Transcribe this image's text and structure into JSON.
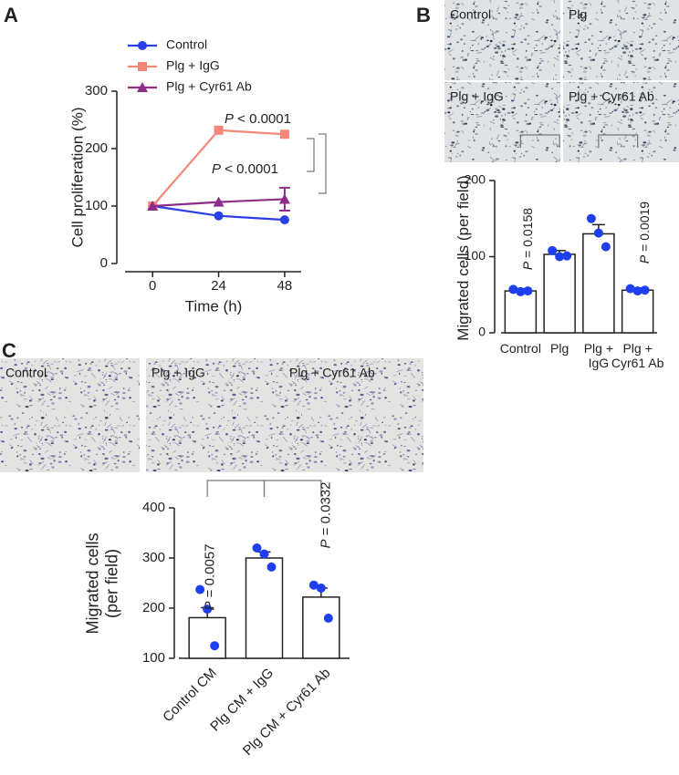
{
  "chart_data": [
    {
      "type": "line",
      "panel": "A",
      "xlabel": "Time (h)",
      "ylabel": "Cell proliferation (%)",
      "x": [
        0,
        24,
        48
      ],
      "xlim": [
        -13,
        54
      ],
      "ylim": [
        0,
        300
      ],
      "xticks": [
        0,
        24,
        48
      ],
      "yticks": [
        0,
        100,
        200,
        300
      ],
      "series": [
        {
          "name": "Control",
          "color": "#2b3fe6",
          "marker": "circle",
          "values": [
            100,
            83,
            76
          ]
        },
        {
          "name": "Plg + IgG",
          "color": "#f4877a",
          "marker": "square",
          "values": [
            100,
            232,
            225
          ]
        },
        {
          "name": "Plg + Cyr61 Ab",
          "color": "#8e2c8a",
          "marker": "triangle",
          "values": [
            100,
            107,
            112
          ],
          "errors": [
            null,
            null,
            20
          ]
        }
      ],
      "annotations": [
        "P < 0.0001",
        "P < 0.0001"
      ]
    },
    {
      "type": "bar",
      "panel": "B",
      "image_labels": [
        "Control",
        "Plg",
        "Plg + IgG",
        "Plg + Cyr61 Ab"
      ],
      "ylabel": "Migrated cells (per field)",
      "categories": [
        "Control",
        "Plg",
        "Plg +\nIgG",
        "Plg +\nCyr61 Ab"
      ],
      "values": [
        55,
        103,
        130,
        56
      ],
      "errors": [
        3,
        5,
        12,
        3
      ],
      "points": [
        [
          57,
          54,
          55
        ],
        [
          108,
          100,
          101
        ],
        [
          150,
          131,
          113
        ],
        [
          58,
          55,
          56
        ]
      ],
      "ylim": [
        0,
        200
      ],
      "yticks": [
        0,
        100,
        200
      ],
      "color": "#ffffff",
      "point_color": "#1e3ff0",
      "annotations": [
        "P = 0.0158",
        "P = 0.0019"
      ]
    },
    {
      "type": "bar",
      "panel": "C",
      "image_labels": [
        "Control",
        "Plg + IgG",
        "Plg + Cyr61 Ab"
      ],
      "ylabel": "Migrated cells\n(per field)",
      "categories": [
        "Control CM",
        "Plg CM + IgG",
        "Plg CM + Cyr61 Ab"
      ],
      "values": [
        181,
        300,
        222
      ],
      "errors": [
        20,
        12,
        18
      ],
      "points": [
        [
          237,
          198,
          125
        ],
        [
          320,
          308,
          282
        ],
        [
          246,
          240,
          180
        ]
      ],
      "ylim": [
        100,
        400
      ],
      "yticks": [
        100,
        200,
        300,
        400
      ],
      "color": "#ffffff",
      "point_color": "#1e3ff0",
      "annotations": [
        "P = 0.0057",
        "P = 0.0332"
      ]
    }
  ]
}
